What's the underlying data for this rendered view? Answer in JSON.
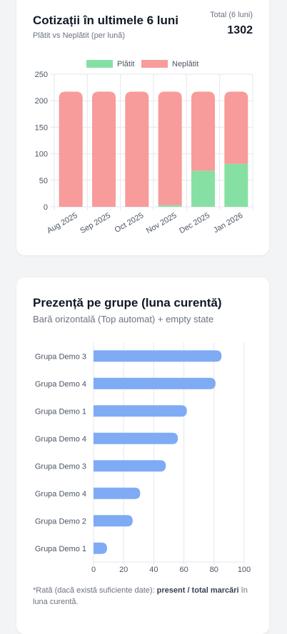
{
  "monthly_card": {
    "title": "Cotizații în ultimele 6 luni",
    "subtitle": "Plătit vs Neplătit (per lună)",
    "total_label": "Total (6 luni)",
    "total_value": "1302"
  },
  "groups_card": {
    "title": "Prezență pe grupe (luna curentă)",
    "subtitle": "Bară orizontală (Top automat) + empty state",
    "footnote_prefix": "*Rată (dacă există suficiente date): ",
    "footnote_bold": "present / total marcări",
    "footnote_suffix": " în luna curentă."
  },
  "colors": {
    "paid": "#86e0a4",
    "unpaid": "#f79b9b",
    "bar": "#7fabf5",
    "grid": "#e5e7eb"
  },
  "chart_data": [
    {
      "type": "bar",
      "stacked": true,
      "categories": [
        "Aug 2025",
        "Sep 2025",
        "Oct 2025",
        "Nov 2025",
        "Dec 2025",
        "Jan 2026"
      ],
      "series": [
        {
          "name": "Plătit",
          "values": [
            0,
            0,
            0,
            3,
            68,
            81
          ]
        },
        {
          "name": "Neplătit",
          "values": [
            217,
            217,
            217,
            214,
            149,
            136
          ]
        }
      ],
      "ylim": [
        0,
        250
      ],
      "yticks": [
        0,
        50,
        100,
        150,
        200,
        250
      ],
      "legend": "top-center",
      "grid": true
    },
    {
      "type": "bar",
      "orientation": "horizontal",
      "categories": [
        "Grupa Demo 3",
        "Grupa Demo 4",
        "Grupa Demo 1",
        "Grupa Demo 4",
        "Grupa Demo 3",
        "Grupa Demo 4",
        "Grupa Demo 2",
        "Grupa Demo 1"
      ],
      "values": [
        85,
        81,
        62,
        56,
        48,
        31,
        26,
        9
      ],
      "xlim": [
        0,
        100
      ],
      "xticks": [
        0,
        20,
        40,
        60,
        80,
        100
      ],
      "grid": true
    }
  ]
}
